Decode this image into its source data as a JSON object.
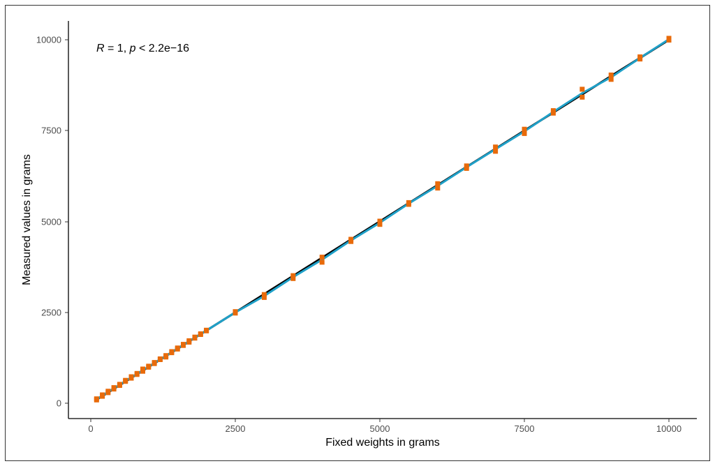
{
  "chart_data": {
    "type": "scatter",
    "xlabel": "Fixed weights in grams",
    "ylabel": "Measured values in grams",
    "xlim": [
      0,
      10000
    ],
    "ylim": [
      0,
      10000
    ],
    "x_ticks": [
      "0",
      "2500",
      "5000",
      "7500",
      "10000"
    ],
    "y_ticks": [
      "0",
      "2500",
      "5000",
      "7500",
      "10000"
    ],
    "grid": false,
    "annotation": {
      "r_symbol": "R",
      "r_value": " = 1, ",
      "p_symbol": "p",
      "p_value": " < 2.2e−16"
    },
    "colors": {
      "line_measured": "#000000",
      "line_fit": "#1fa0c8",
      "points": "#e86a0a"
    },
    "x": [
      100,
      200,
      300,
      400,
      500,
      600,
      700,
      800,
      900,
      1000,
      1100,
      1200,
      1300,
      1400,
      1500,
      1600,
      1700,
      1800,
      1900,
      2000,
      2500,
      3000,
      3500,
      4000,
      4500,
      5000,
      5500,
      6000,
      6500,
      7000,
      7500,
      8000,
      8500,
      9000,
      9500,
      10000
    ],
    "series": [
      {
        "values": [
          100,
          200,
          300,
          400,
          500,
          600,
          700,
          800,
          900,
          1000,
          1100,
          1200,
          1300,
          1400,
          1500,
          1600,
          1700,
          1800,
          1900,
          2000,
          2500,
          3000,
          3500,
          4000,
          4500,
          5000,
          5500,
          6000,
          6500,
          7000,
          7500,
          8000,
          8500,
          9000,
          9500,
          10000
        ]
      },
      {
        "values": [
          90,
          190,
          290,
          390,
          490,
          600,
          690,
          790,
          880,
          990,
          1090,
          1200,
          1270,
          1390,
          1520,
          1590,
          1680,
          1790,
          1890,
          1990,
          2480,
          2910,
          3430,
          3880,
          4450,
          4920,
          5470,
          5920,
          6460,
          6930,
          7420,
          7980,
          8420,
          8910,
          9470,
          9990
        ]
      },
      {
        "values": [
          120,
          230,
          330,
          430,
          520,
          630,
          730,
          820,
          940,
          1020,
          1120,
          1220,
          1310,
          1420,
          1490,
          1620,
          1720,
          1820,
          1910,
          2010,
          2520,
          2990,
          3510,
          4020,
          4510,
          5010,
          5520,
          6040,
          6530,
          7050,
          7540,
          8050,
          8640,
          9030,
          9530,
          10040
        ]
      }
    ]
  }
}
